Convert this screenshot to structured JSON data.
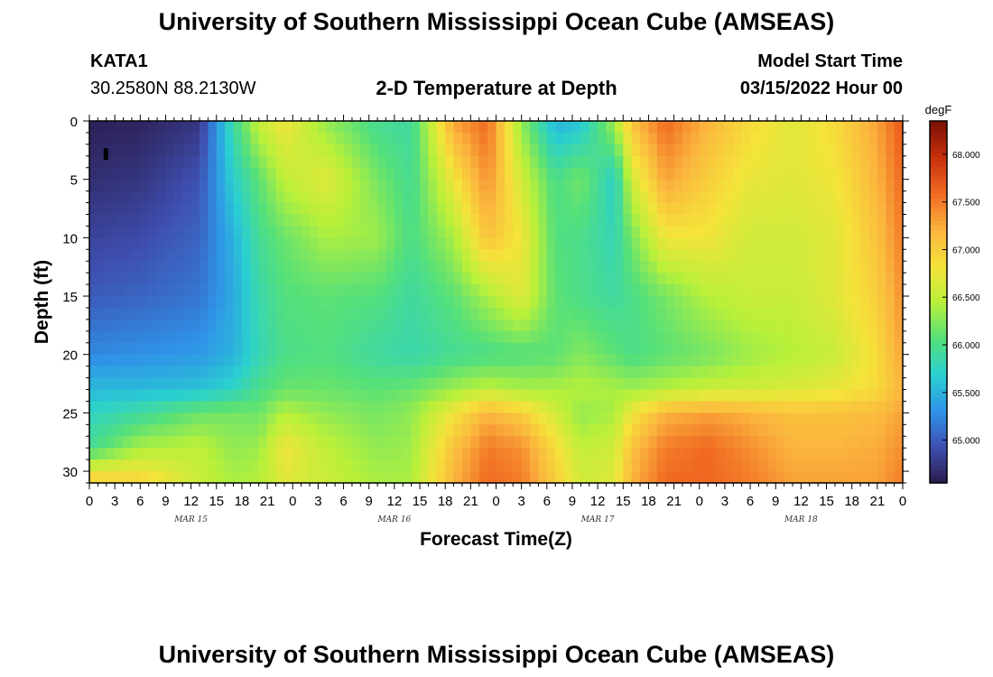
{
  "header": {
    "title": "University of Southern Mississippi Ocean Cube (AMSEAS)",
    "station": "KATA1",
    "coords": "30.2580N  88.2130W",
    "plot_title": "2-D Temperature at Depth",
    "model_start_label": "Model Start Time",
    "model_start_value": "03/15/2022 Hour 00"
  },
  "footer": {
    "title": "University of Southern Mississippi Ocean Cube (AMSEAS)"
  },
  "chart_data": {
    "type": "heatmap",
    "title": "2-D Temperature at Depth",
    "xlabel": "Forecast Time(Z)",
    "ylabel": "Depth (ft)",
    "x_range_hours": [
      0,
      96
    ],
    "y_range_ft": [
      0,
      31
    ],
    "x_ticks": [
      {
        "h": 0,
        "label": "0"
      },
      {
        "h": 3,
        "label": "3"
      },
      {
        "h": 6,
        "label": "6"
      },
      {
        "h": 9,
        "label": "9"
      },
      {
        "h": 12,
        "label": "12"
      },
      {
        "h": 15,
        "label": "15"
      },
      {
        "h": 18,
        "label": "18"
      },
      {
        "h": 21,
        "label": "21"
      },
      {
        "h": 24,
        "label": "0"
      },
      {
        "h": 27,
        "label": "3"
      },
      {
        "h": 30,
        "label": "6"
      },
      {
        "h": 33,
        "label": "9"
      },
      {
        "h": 36,
        "label": "12"
      },
      {
        "h": 39,
        "label": "15"
      },
      {
        "h": 42,
        "label": "18"
      },
      {
        "h": 45,
        "label": "21"
      },
      {
        "h": 48,
        "label": "0"
      },
      {
        "h": 51,
        "label": "3"
      },
      {
        "h": 54,
        "label": "6"
      },
      {
        "h": 57,
        "label": "9"
      },
      {
        "h": 60,
        "label": "12"
      },
      {
        "h": 63,
        "label": "15"
      },
      {
        "h": 66,
        "label": "18"
      },
      {
        "h": 69,
        "label": "21"
      },
      {
        "h": 72,
        "label": "0"
      },
      {
        "h": 75,
        "label": "3"
      },
      {
        "h": 78,
        "label": "6"
      },
      {
        "h": 81,
        "label": "9"
      },
      {
        "h": 84,
        "label": "12"
      },
      {
        "h": 87,
        "label": "15"
      },
      {
        "h": 90,
        "label": "18"
      },
      {
        "h": 93,
        "label": "21"
      },
      {
        "h": 96,
        "label": "0"
      }
    ],
    "day_labels": [
      {
        "h": 12,
        "label": "MAR 15"
      },
      {
        "h": 36,
        "label": "MAR 16"
      },
      {
        "h": 60,
        "label": "MAR 17"
      },
      {
        "h": 84,
        "label": "MAR 18"
      }
    ],
    "y_ticks": [
      0,
      5,
      10,
      15,
      20,
      25,
      30
    ],
    "colorbar": {
      "units": "degF",
      "min": 64.55,
      "max": 68.35,
      "ticks": [
        "65.000",
        "65.500",
        "66.000",
        "66.500",
        "67.000",
        "67.500",
        "68.000"
      ],
      "colors": [
        "#2a1a4a",
        "#3f4fb0",
        "#2f93e8",
        "#2ad0d0",
        "#55e07a",
        "#b8f03a",
        "#f5e33a",
        "#fbb43e",
        "#f06a22",
        "#c8300c",
        "#7a0f04"
      ]
    },
    "anchor_depths_ft": [
      0,
      5,
      10,
      15,
      20,
      23,
      25,
      28,
      31
    ],
    "anchor_hours": [
      0,
      6,
      13,
      17,
      20,
      23,
      28,
      34,
      38,
      43,
      47,
      51,
      55,
      58,
      62,
      64,
      68,
      73,
      78,
      83,
      88,
      93,
      96
    ],
    "temperature_degF": [
      [
        64.6,
        64.62,
        64.75,
        65.9,
        66.55,
        66.8,
        66.3,
        65.95,
        65.9,
        67.3,
        67.6,
        66.3,
        65.5,
        65.6,
        66.4,
        67.1,
        67.6,
        67.2,
        66.9,
        66.7,
        66.9,
        67.3,
        67.7
      ],
      [
        64.7,
        64.75,
        64.95,
        65.7,
        66.1,
        66.5,
        66.7,
        66.2,
        65.95,
        66.8,
        67.4,
        66.6,
        66.0,
        66.2,
        65.7,
        66.6,
        67.3,
        67.0,
        66.75,
        66.7,
        66.8,
        67.2,
        67.6
      ],
      [
        64.85,
        64.9,
        65.05,
        65.5,
        65.95,
        66.15,
        66.4,
        66.35,
        66.0,
        66.4,
        67.1,
        66.8,
        66.05,
        66.0,
        65.8,
        66.2,
        66.8,
        66.8,
        66.6,
        66.6,
        66.7,
        67.1,
        67.5
      ],
      [
        65.0,
        65.05,
        65.15,
        65.45,
        65.85,
        66.05,
        66.1,
        66.05,
        65.9,
        66.1,
        66.4,
        66.7,
        66.1,
        66.0,
        65.9,
        66.0,
        66.2,
        66.45,
        66.55,
        66.55,
        66.7,
        67.0,
        67.4
      ],
      [
        65.25,
        65.3,
        65.35,
        65.5,
        65.8,
        66.0,
        66.05,
        65.9,
        65.85,
        65.95,
        66.0,
        66.05,
        66.1,
        66.25,
        66.1,
        66.0,
        66.1,
        66.2,
        66.35,
        66.45,
        66.55,
        66.9,
        67.3
      ],
      [
        65.55,
        65.55,
        65.6,
        65.75,
        66.0,
        66.15,
        66.15,
        66.1,
        66.15,
        66.35,
        66.5,
        66.4,
        66.4,
        66.45,
        66.4,
        66.35,
        66.45,
        66.55,
        66.6,
        66.65,
        66.75,
        66.9,
        67.2
      ],
      [
        65.75,
        65.9,
        66.15,
        66.2,
        66.15,
        66.45,
        66.3,
        66.2,
        66.3,
        66.8,
        67.2,
        67.0,
        66.6,
        66.3,
        66.4,
        66.8,
        67.2,
        67.3,
        67.2,
        67.1,
        67.1,
        67.15,
        67.3
      ],
      [
        65.95,
        66.4,
        66.5,
        66.3,
        66.35,
        66.8,
        66.5,
        66.3,
        66.35,
        67.1,
        67.5,
        67.4,
        66.9,
        66.5,
        66.6,
        67.1,
        67.5,
        67.6,
        67.4,
        67.2,
        67.2,
        67.25,
        67.4
      ],
      [
        67.1,
        67.0,
        66.55,
        66.4,
        66.45,
        66.7,
        66.55,
        66.4,
        66.4,
        67.2,
        67.6,
        67.5,
        67.0,
        66.6,
        66.7,
        67.2,
        67.6,
        67.6,
        67.5,
        67.3,
        67.3,
        67.3,
        67.5
      ]
    ],
    "marker": {
      "h": 1.9,
      "depth": 2.8
    }
  }
}
